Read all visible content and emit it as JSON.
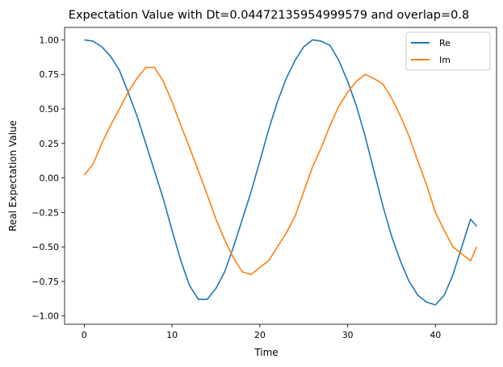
{
  "chart_data": {
    "type": "line",
    "title": "Expectation Value with Dt=0.04472135954999579 and overlap=0.8",
    "xlabel": "Time",
    "ylabel": "Real Expectation Value",
    "xlim": [
      -2.24,
      46.96
    ],
    "ylim": [
      -1.06,
      1.09
    ],
    "xticks": [
      0,
      10,
      20,
      30,
      40
    ],
    "xtick_labels": [
      "0",
      "10",
      "20",
      "30",
      "40"
    ],
    "yticks": [
      -1.0,
      -0.75,
      -0.5,
      -0.25,
      0.0,
      0.25,
      0.5,
      0.75,
      1.0
    ],
    "ytick_labels": [
      "−1.00",
      "−0.75",
      "−0.50",
      "−0.25",
      "0.00",
      "0.25",
      "0.50",
      "0.75",
      "1.00"
    ],
    "grid": false,
    "legend_position": "top-right",
    "series": [
      {
        "name": "Re",
        "color": "#1f77b4",
        "x": [
          0,
          1,
          2,
          3,
          4,
          5,
          6,
          7,
          8,
          9,
          10,
          11,
          12,
          13,
          14,
          15,
          16,
          17,
          18,
          19,
          20,
          21,
          22,
          23,
          24,
          25,
          26,
          27,
          28,
          29,
          30,
          31,
          32,
          33,
          34,
          35,
          36,
          37,
          38,
          39,
          40,
          41,
          42,
          43,
          44,
          44.7
        ],
        "y": [
          1.0,
          0.99,
          0.95,
          0.88,
          0.78,
          0.62,
          0.45,
          0.25,
          0.05,
          -0.15,
          -0.38,
          -0.6,
          -0.78,
          -0.88,
          -0.88,
          -0.8,
          -0.68,
          -0.5,
          -0.3,
          -0.1,
          0.12,
          0.35,
          0.55,
          0.72,
          0.85,
          0.95,
          1.0,
          0.99,
          0.96,
          0.85,
          0.7,
          0.52,
          0.3,
          0.05,
          -0.2,
          -0.42,
          -0.6,
          -0.75,
          -0.85,
          -0.9,
          -0.92,
          -0.85,
          -0.7,
          -0.5,
          -0.3,
          -0.35
        ]
      },
      {
        "name": "Im",
        "color": "#ff7f0e",
        "x": [
          0,
          1,
          2,
          3,
          4,
          5,
          6,
          7,
          8,
          9,
          10,
          11,
          12,
          13,
          14,
          15,
          16,
          17,
          18,
          19,
          20,
          21,
          22,
          23,
          24,
          25,
          26,
          27,
          28,
          29,
          30,
          31,
          32,
          33,
          34,
          35,
          36,
          37,
          38,
          39,
          40,
          41,
          42,
          43,
          44,
          44.7
        ],
        "y": [
          0.02,
          0.1,
          0.25,
          0.38,
          0.5,
          0.62,
          0.72,
          0.8,
          0.8,
          0.7,
          0.55,
          0.38,
          0.22,
          0.05,
          -0.12,
          -0.3,
          -0.45,
          -0.58,
          -0.68,
          -0.7,
          -0.65,
          -0.6,
          -0.5,
          -0.4,
          -0.28,
          -0.1,
          0.08,
          0.22,
          0.38,
          0.52,
          0.62,
          0.7,
          0.75,
          0.72,
          0.68,
          0.58,
          0.45,
          0.3,
          0.12,
          -0.05,
          -0.25,
          -0.38,
          -0.5,
          -0.55,
          -0.6,
          -0.5
        ]
      }
    ]
  }
}
